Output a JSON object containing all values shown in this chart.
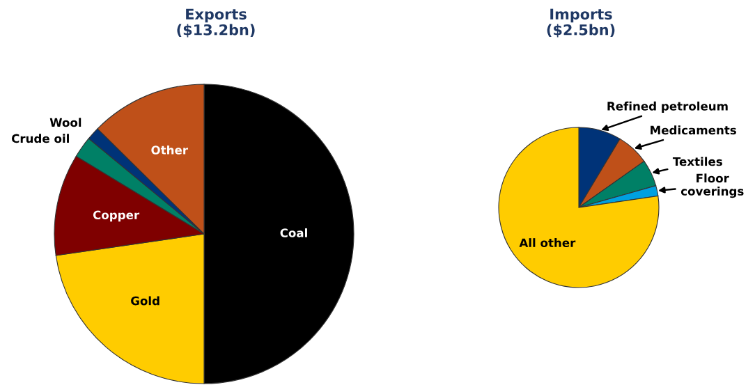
{
  "chart_data": [
    {
      "type": "pie",
      "title": "Exports\n($13.2bn)",
      "categories": [
        "Coal",
        "Gold",
        "Copper",
        "Crude oil",
        "Wool",
        "Other"
      ],
      "values": [
        50.0,
        22.7,
        11.0,
        2.3,
        1.4,
        12.6
      ],
      "colors": [
        "#000000",
        "#ffcc00",
        "#7f0000",
        "#008066",
        "#003378",
        "#bf5019"
      ]
    },
    {
      "type": "pie",
      "title": "Imports\n($2.5bn)",
      "categories": [
        "Refined petroleum",
        "Medicaments",
        "Textiles",
        "Floor\ncoverings",
        "All other"
      ],
      "values": [
        8.6,
        6.6,
        5.4,
        2.1,
        77.3
      ],
      "colors": [
        "#003378",
        "#bf5019",
        "#008066",
        "#00a0e0",
        "#ffcc00"
      ]
    }
  ]
}
